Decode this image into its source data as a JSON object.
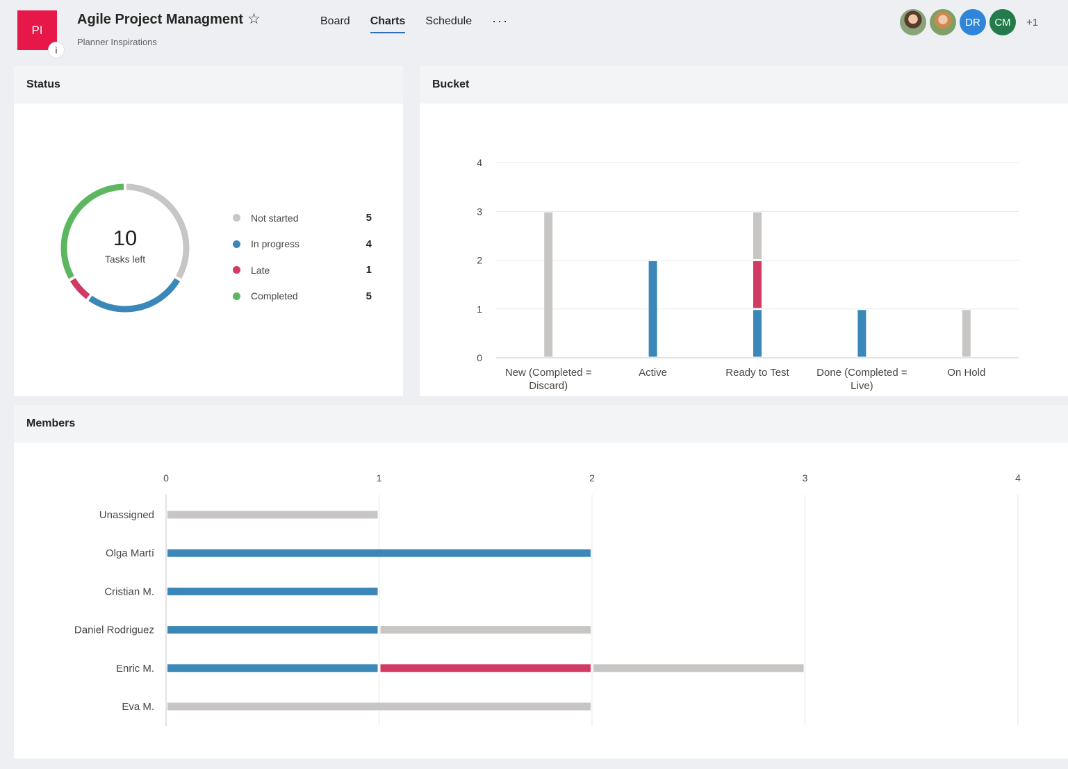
{
  "header": {
    "logo_initials": "PI",
    "info_icon": "i",
    "title": "Agile Project Managment",
    "star_icon": "☆",
    "subtitle": "Planner Inspirations",
    "tabs": [
      {
        "label": "Board",
        "active": false
      },
      {
        "label": "Charts",
        "active": true
      },
      {
        "label": "Schedule",
        "active": false
      }
    ],
    "more_icon": "···",
    "members": [
      {
        "initials": "",
        "icon": "avatar-photo"
      },
      {
        "initials": "",
        "icon": "avatar-photo"
      },
      {
        "initials": "DR"
      },
      {
        "initials": "CM"
      }
    ],
    "more_members": "+1"
  },
  "status": {
    "title": "Status",
    "tasks_left": "10",
    "tasks_left_label": "Tasks left",
    "legend": [
      {
        "label": "Not started",
        "count": "5",
        "color": "#c8c6c4"
      },
      {
        "label": "In progress",
        "count": "4",
        "color": "#3a87b8"
      },
      {
        "label": "Late",
        "count": "1",
        "color": "#d13a63"
      },
      {
        "label": "Completed",
        "count": "5",
        "color": "#5db761"
      }
    ]
  },
  "bucket": {
    "title": "Bucket"
  },
  "members_card": {
    "title": "Members"
  },
  "colors": {
    "not_started": "#c8c6c4",
    "in_progress": "#3a87b8",
    "late": "#d13a63",
    "completed": "#5db761",
    "brand": "#e8174a"
  },
  "chart_data": [
    {
      "type": "pie",
      "title": "Status",
      "categories": [
        "Not started",
        "In progress",
        "Late",
        "Completed"
      ],
      "values": [
        5,
        4,
        1,
        5
      ],
      "colors": [
        "#c8c6c4",
        "#3a87b8",
        "#d13a63",
        "#5db761"
      ]
    },
    {
      "type": "bar",
      "title": "Bucket",
      "orientation": "vertical",
      "stacked": true,
      "categories": [
        [
          "New (Completed =",
          "Discard)"
        ],
        [
          "Active"
        ],
        [
          "Ready to Test"
        ],
        [
          "Done (Completed =",
          "Live)"
        ],
        [
          "On Hold"
        ]
      ],
      "series": [
        {
          "name": "In progress",
          "values": [
            0,
            2,
            1,
            1,
            0
          ],
          "color": "#3a87b8"
        },
        {
          "name": "Late",
          "values": [
            0,
            0,
            1,
            0,
            0
          ],
          "color": "#d13a63"
        },
        {
          "name": "Not started",
          "values": [
            3,
            0,
            1,
            0,
            1
          ],
          "color": "#c8c6c4"
        }
      ],
      "ylim": [
        0,
        4
      ],
      "yticks": [
        0,
        1,
        2,
        3,
        4
      ],
      "grid": true
    },
    {
      "type": "bar",
      "title": "Members",
      "orientation": "horizontal",
      "stacked": true,
      "categories": [
        "Unassigned",
        "Olga Martí",
        "Cristian M.",
        "Daniel Rodriguez",
        "Enric M.",
        "Eva M."
      ],
      "series": [
        {
          "name": "In progress",
          "values": [
            0,
            2,
            1,
            1,
            1,
            0
          ],
          "color": "#3a87b8"
        },
        {
          "name": "Late",
          "values": [
            0,
            0,
            0,
            0,
            1,
            0
          ],
          "color": "#d13a63"
        },
        {
          "name": "Not started",
          "values": [
            1,
            0,
            0,
            1,
            1,
            2
          ],
          "color": "#c8c6c4"
        }
      ],
      "xlim": [
        0,
        4
      ],
      "xticks": [
        0,
        1,
        2,
        3,
        4
      ],
      "grid": true
    }
  ]
}
